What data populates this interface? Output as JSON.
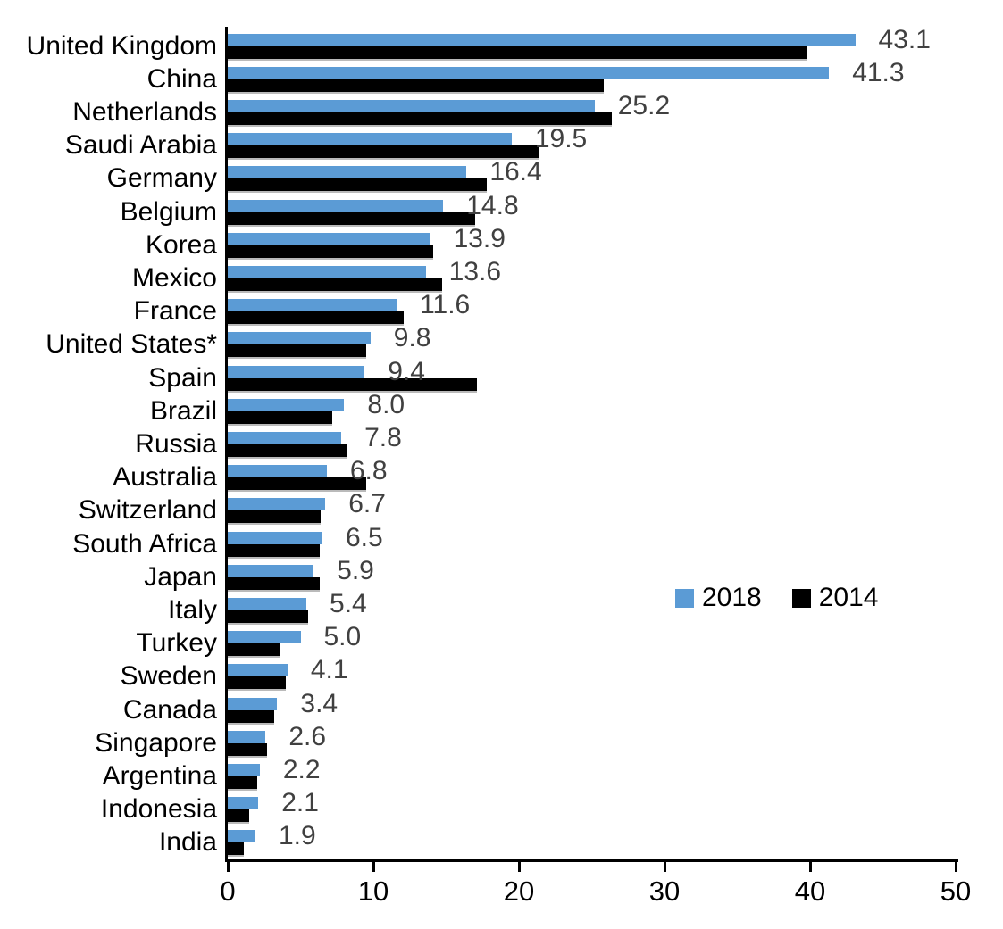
{
  "chart_data": {
    "type": "bar",
    "orientation": "horizontal",
    "title": "",
    "categories": [
      "United Kingdom",
      "China",
      "Netherlands",
      "Saudi Arabia",
      "Germany",
      "Belgium",
      "Korea",
      "Mexico",
      "France",
      "United States*",
      "Spain",
      "Brazil",
      "Russia",
      "Australia",
      "Switzerland",
      "South Africa",
      "Japan",
      "Italy",
      "Turkey",
      "Sweden",
      "Canada",
      "Singapore",
      "Argentina",
      "Indonesia",
      "India"
    ],
    "series": [
      {
        "name": "2018",
        "color": "#5B9BD5",
        "values": [
          43.1,
          41.3,
          25.2,
          19.5,
          16.4,
          14.8,
          13.9,
          13.6,
          11.6,
          9.8,
          9.4,
          8.0,
          7.8,
          6.8,
          6.7,
          6.5,
          5.9,
          5.4,
          5.0,
          4.1,
          3.4,
          2.6,
          2.2,
          2.1,
          1.9
        ],
        "labels": [
          "43.1",
          "41.3",
          "25.2",
          "19.5",
          "16.4",
          "14.8",
          "13.9",
          "13.6",
          "11.6",
          "9.8",
          "9.4",
          "8.0",
          "7.8",
          "6.8",
          "6.7",
          "6.5",
          "5.9",
          "5.4",
          "5.0",
          "4.1",
          "3.4",
          "2.6",
          "2.2",
          "2.1",
          "1.9"
        ]
      },
      {
        "name": "2014",
        "color": "#000000",
        "values": [
          39.8,
          25.8,
          26.4,
          21.4,
          17.8,
          17.0,
          14.1,
          14.7,
          12.1,
          9.5,
          17.1,
          7.2,
          8.2,
          9.5,
          6.4,
          6.3,
          6.3,
          5.5,
          3.6,
          4.0,
          3.2,
          2.7,
          2.0,
          1.5,
          1.1
        ]
      }
    ],
    "xlim": [
      0,
      50
    ],
    "x_ticks": {
      "values": [
        0,
        10,
        20,
        30,
        40,
        50
      ],
      "labels": [
        "0",
        "10",
        "20",
        "30",
        "40",
        "50"
      ]
    },
    "legend": {
      "position": "center-right",
      "entries": [
        "2018",
        "2014"
      ]
    },
    "grid": "off",
    "value_label_color": "#404040",
    "axis_color": "#000000"
  }
}
